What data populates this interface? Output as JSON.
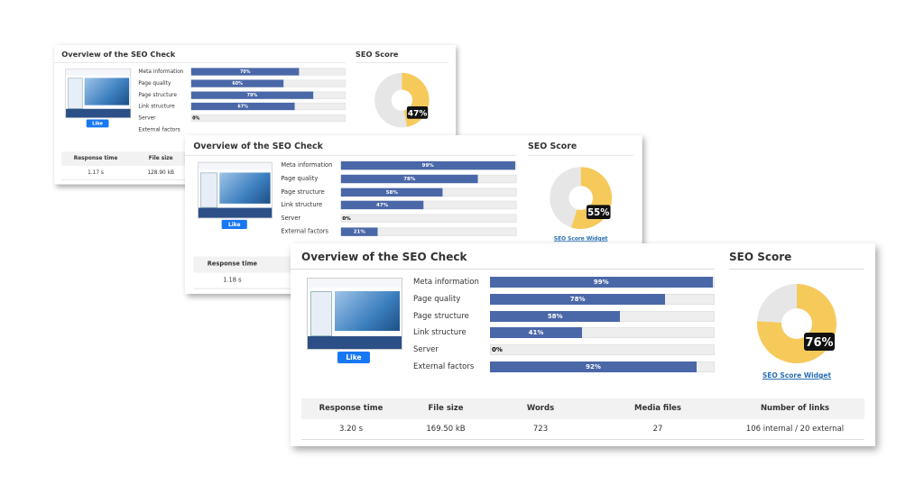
{
  "cards": [
    {
      "title": "Overview of the SEO Check",
      "score_title": "SEO Score",
      "like": "Like",
      "score": {
        "value": 47,
        "label": "47%"
      },
      "bars": [
        {
          "label": "Meta information",
          "value": 70,
          "value_label": "70%"
        },
        {
          "label": "Page quality",
          "value": 60,
          "value_label": "60%"
        },
        {
          "label": "Page structure",
          "value": 79,
          "value_label": "79%"
        },
        {
          "label": "Link structure",
          "value": 67,
          "value_label": "67%"
        },
        {
          "label": "Server",
          "value": 0,
          "value_label": "0%"
        },
        {
          "label": "External factors"
        }
      ],
      "stats": {
        "headers": [
          "Response time",
          "File size"
        ],
        "values": [
          "1.17 s",
          "128.90 kB"
        ]
      }
    },
    {
      "title": "Overview of the SEO Check",
      "score_title": "SEO Score",
      "like": "Like",
      "widget_link": "SEO Score Widget",
      "score": {
        "value": 55,
        "label": "55%"
      },
      "bars": [
        {
          "label": "Meta information",
          "value": 99,
          "value_label": "99%"
        },
        {
          "label": "Page quality",
          "value": 78,
          "value_label": "78%"
        },
        {
          "label": "Page structure",
          "value": 58,
          "value_label": "58%"
        },
        {
          "label": "Link structure",
          "value": 47,
          "value_label": "47%"
        },
        {
          "label": "Server",
          "value": 0,
          "value_label": "0%"
        },
        {
          "label": "External factors",
          "value": 21,
          "value_label": "21%"
        }
      ],
      "stats": {
        "headers": [
          "Response time"
        ],
        "values": [
          "1.18 s"
        ]
      }
    },
    {
      "title": "Overview of the SEO Check",
      "score_title": "SEO Score",
      "like": "Like",
      "widget_link": "SEO Score Widget",
      "score": {
        "value": 76,
        "label": "76%"
      },
      "bars": [
        {
          "label": "Meta information",
          "value": 99,
          "value_label": "99%"
        },
        {
          "label": "Page quality",
          "value": 78,
          "value_label": "78%"
        },
        {
          "label": "Page structure",
          "value": 58,
          "value_label": "58%"
        },
        {
          "label": "Link structure",
          "value": 41,
          "value_label": "41%"
        },
        {
          "label": "Server",
          "value": 0,
          "value_label": "0%"
        },
        {
          "label": "External factors",
          "value": 92,
          "value_label": "92%"
        }
      ],
      "stats": {
        "headers": [
          "Response time",
          "File size",
          "Words",
          "Media files",
          "Number of links"
        ],
        "values": [
          "3.20 s",
          "169.50 kB",
          "723",
          "27",
          "106 internal / 20 external"
        ]
      }
    }
  ]
}
